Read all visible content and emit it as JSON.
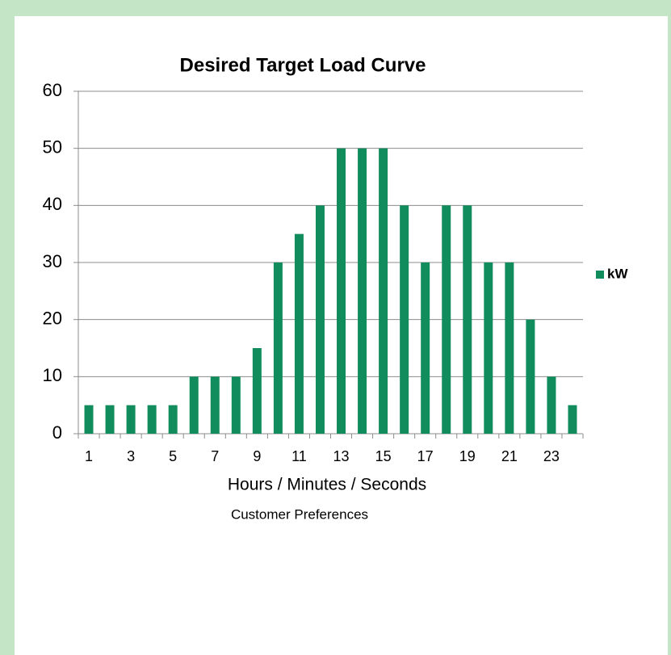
{
  "chart_data": {
    "type": "bar",
    "title": "Desired Target Load Curve",
    "x_label": "Hours / Minutes / Seconds",
    "caption": "Customer Preferences",
    "categories": [
      "1",
      null,
      "3",
      null,
      "5",
      null,
      "7",
      null,
      "9",
      null,
      "11",
      null,
      "13",
      null,
      "15",
      null,
      "17",
      null,
      "19",
      null,
      "21",
      null,
      "23",
      null
    ],
    "series": [
      {
        "name": "kW",
        "color": "#118c5c",
        "values": [
          5,
          5,
          5,
          5,
          5,
          10,
          10,
          10,
          15,
          30,
          35,
          40,
          50,
          50,
          50,
          40,
          30,
          40,
          40,
          30,
          30,
          20,
          10,
          5
        ]
      }
    ],
    "ylim": [
      0,
      60
    ],
    "yticks": [
      0,
      10,
      20,
      30,
      40,
      50,
      60
    ],
    "grid": true,
    "legend": "right"
  }
}
